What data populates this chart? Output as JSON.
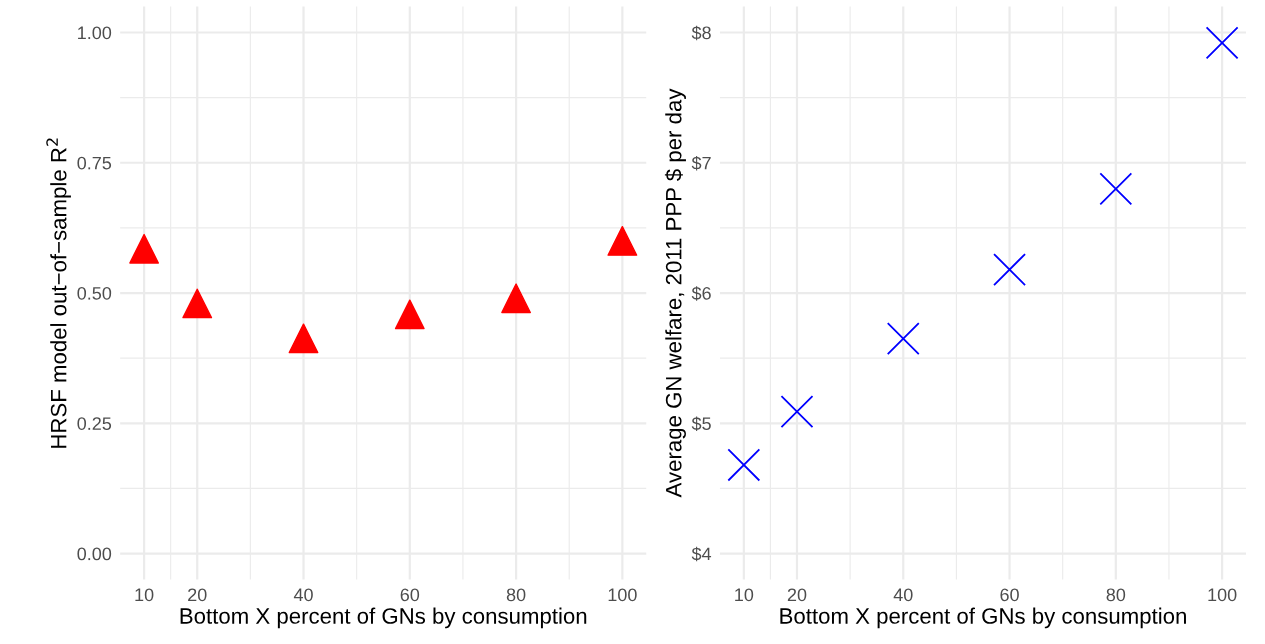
{
  "chart_data": [
    {
      "type": "scatter",
      "xlabel": "Bottom X percent of GNs by consumption",
      "ylabel": "HRSF model out−of−sample R$^{2}$",
      "x": [
        10,
        20,
        40,
        60,
        80,
        100
      ],
      "series": [
        {
          "color": "#ff0000",
          "values": [
            0.585,
            0.48,
            0.413,
            0.459,
            0.49,
            0.6
          ]
        }
      ],
      "marker": "triangle",
      "xlim": [
        5.5,
        104.5
      ],
      "xticks": [
        10,
        20,
        40,
        60,
        80,
        100
      ],
      "ylim": [
        -0.05,
        1.05
      ],
      "yticks": [
        {
          "value": 0,
          "label": "0.00"
        },
        {
          "value": 0.25,
          "label": "0.25"
        },
        {
          "value": 0.5,
          "label": "0.50"
        },
        {
          "value": 0.75,
          "label": "0.75"
        },
        {
          "value": 1,
          "label": "1.00"
        }
      ],
      "grid": true
    },
    {
      "type": "scatter",
      "xlabel": "Bottom X percent of GNs by consumption",
      "ylabel": "Average GN welfare, 2011 PPP $ per day",
      "x": [
        10,
        20,
        40,
        60,
        80,
        100
      ],
      "series": [
        {
          "color": "#0000ff",
          "values": [
            4.68,
            5.09,
            5.65,
            6.18,
            6.8,
            7.92
          ]
        }
      ],
      "marker": "cross",
      "xlim": [
        5.5,
        104.5
      ],
      "xticks": [
        10,
        20,
        40,
        60,
        80,
        100
      ],
      "ylim": [
        3.8,
        8.2
      ],
      "yticks": [
        {
          "value": 4,
          "label": "$4"
        },
        {
          "value": 5,
          "label": "$5"
        },
        {
          "value": 6,
          "label": "$6"
        },
        {
          "value": 7,
          "label": "$7"
        },
        {
          "value": 8,
          "label": "$8"
        }
      ],
      "grid": true
    }
  ]
}
